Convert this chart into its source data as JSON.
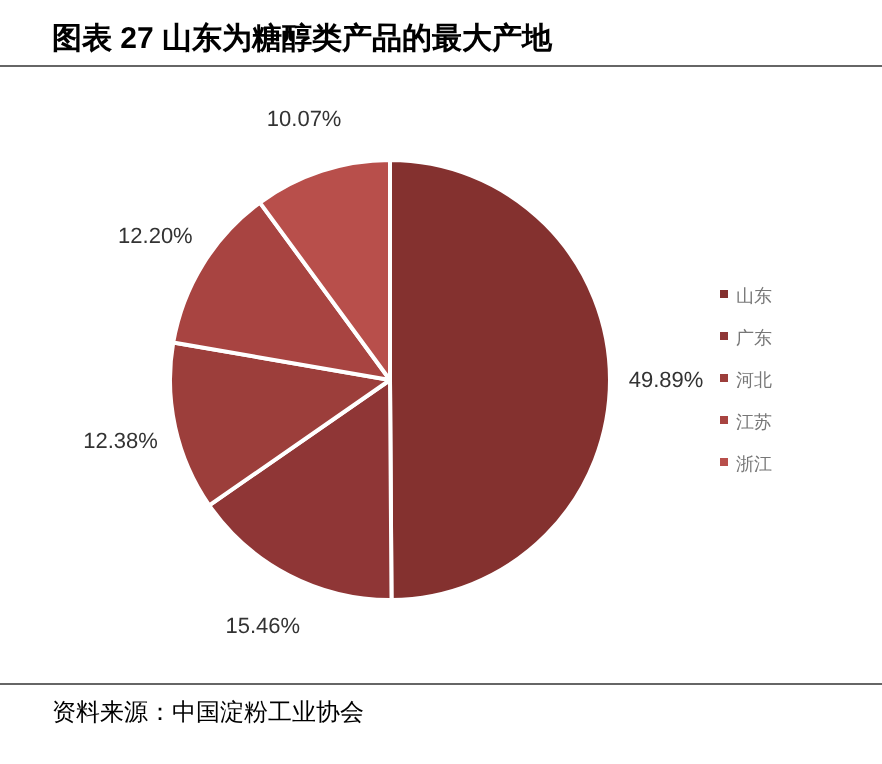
{
  "chart_data": {
    "type": "pie",
    "title": "图表 27 山东为糖醇类产品的最大产地",
    "categories": [
      "山东",
      "广东",
      "河北",
      "江苏",
      "浙江"
    ],
    "values": [
      49.89,
      15.46,
      12.38,
      12.2,
      10.07
    ],
    "colors": [
      "#84312f",
      "#8f3636",
      "#9c3e3b",
      "#a84441",
      "#b84f4b"
    ],
    "value_labels": [
      "49.89%",
      "15.46%",
      "12.38%",
      "12.20%",
      "10.07%"
    ],
    "legend": "right",
    "annotations": [
      "资料来源：中国淀粉工业协会"
    ]
  }
}
